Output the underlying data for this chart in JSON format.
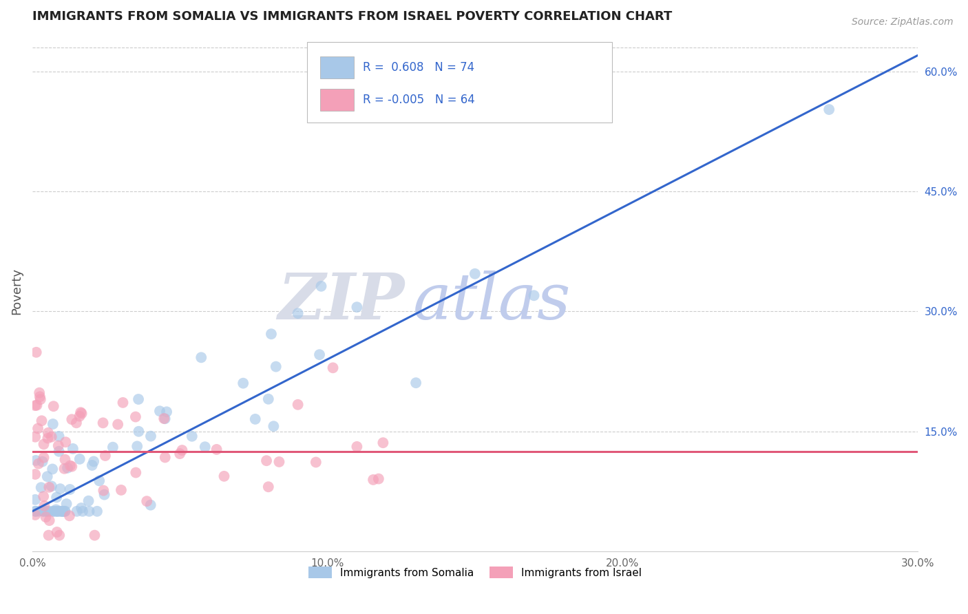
{
  "title": "IMMIGRANTS FROM SOMALIA VS IMMIGRANTS FROM ISRAEL POVERTY CORRELATION CHART",
  "source": "Source: ZipAtlas.com",
  "ylabel_label": "Poverty",
  "legend_line1": "R =  0.608   N = 74",
  "legend_line2": "R = -0.005   N = 64",
  "bottom_legend": [
    "Immigrants from Somalia",
    "Immigrants from Israel"
  ],
  "somalia_color": "#a8c8e8",
  "israel_color": "#f4a0b8",
  "somalia_line_color": "#3366cc",
  "israel_line_color": "#e05878",
  "watermark_zip": "ZIP",
  "watermark_atlas": "atlas",
  "watermark_zip_color": "#d8dce8",
  "watermark_atlas_color": "#c0ccec",
  "background_color": "#ffffff",
  "grid_color": "#cccccc",
  "xlim": [
    0,
    30
  ],
  "ylim": [
    0,
    65
  ],
  "xticks": [
    0,
    10,
    20,
    30
  ],
  "xticklabels": [
    "0.0%",
    "10.0%",
    "20.0%",
    "30.0%"
  ],
  "yticks_right": [
    15,
    30,
    45,
    60
  ],
  "yticklabels_right": [
    "15.0%",
    "30.0%",
    "45.0%",
    "60.0%"
  ],
  "somalia_trend_x": [
    0,
    30
  ],
  "somalia_trend_y": [
    5.0,
    62.0
  ],
  "israel_trend_x": [
    0,
    30
  ],
  "israel_trend_y": [
    12.5,
    12.5
  ]
}
